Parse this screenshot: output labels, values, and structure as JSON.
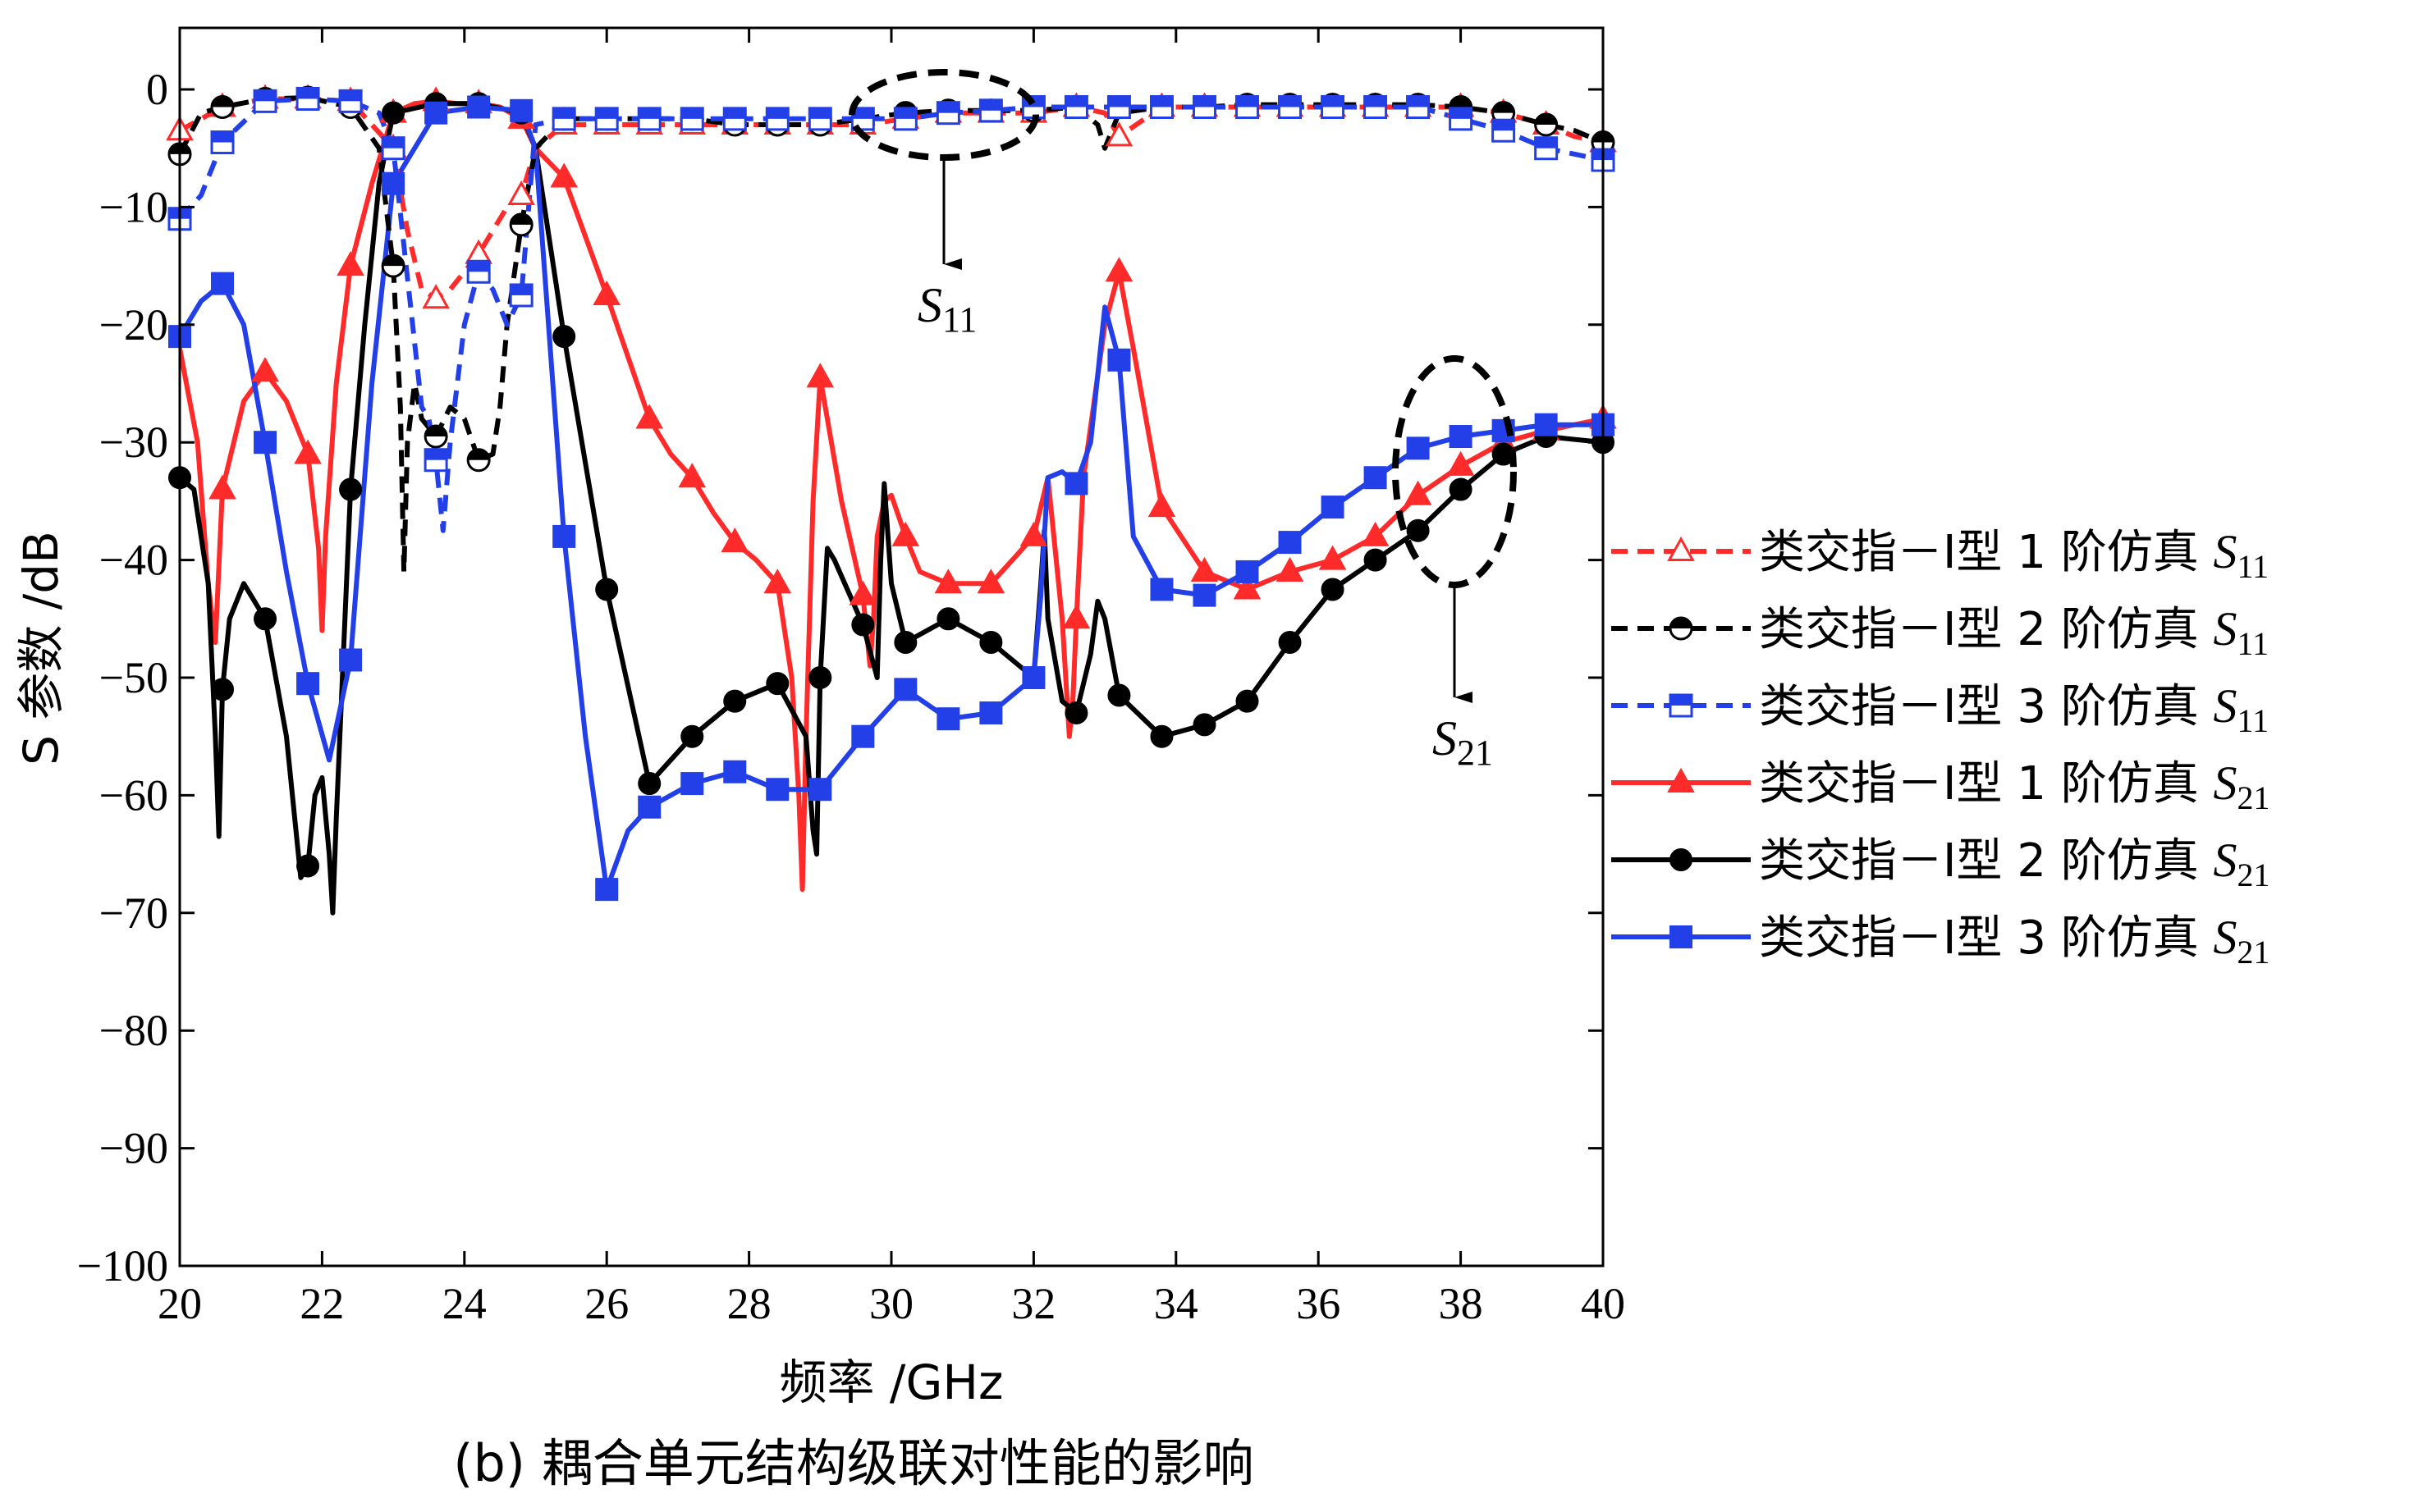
{
  "chart_data": {
    "type": "line",
    "caption": "(b) 耦合单元结构级联对性能的影响",
    "xlabel": "频率 /GHz",
    "ylabel": "S 参数 /dB",
    "xlim": [
      20,
      40
    ],
    "ylim": [
      -100,
      5
    ],
    "x_ticks": [
      20,
      22,
      24,
      26,
      28,
      30,
      32,
      34,
      36,
      38,
      40
    ],
    "x_tick_labels": [
      "20",
      "22",
      "24",
      "26",
      "28",
      "30",
      "32",
      "34",
      "36",
      "38",
      "40"
    ],
    "y_ticks": [
      0,
      -10,
      -20,
      -30,
      -40,
      -50,
      -60,
      -70,
      -80,
      -90,
      -100
    ],
    "y_tick_labels": [
      "0",
      "−10",
      "−20",
      "−30",
      "−40",
      "−50",
      "−60",
      "−70",
      "−80",
      "−90",
      "−100"
    ],
    "grid": false,
    "legend_position": "right",
    "annotations": [
      {
        "text_main": "S",
        "text_sub": "11",
        "points_to": [
          30.9,
          -1.5
        ]
      },
      {
        "text_main": "S",
        "text_sub": "21",
        "points_to": [
          38.0,
          -30.0
        ]
      }
    ],
    "series": [
      {
        "legend_prefix": "类交指－Ⅰ型 1 阶仿真 ",
        "legend_main": "S",
        "legend_sub": "11",
        "color": "#ff2a2a",
        "dash": true,
        "marker": "triangle-open",
        "x": [
          20.0,
          20.6,
          21.2,
          21.8,
          22.4,
          23.0,
          23.2,
          23.4,
          23.6,
          23.8,
          24.2,
          24.6,
          24.8,
          25.0,
          25.4,
          26.0,
          26.6,
          27.2,
          27.8,
          28.4,
          29.0,
          29.6,
          30.2,
          30.8,
          31.4,
          32.0,
          32.6,
          33.0,
          33.2,
          33.8,
          34.4,
          35.0,
          35.6,
          36.2,
          36.8,
          37.4,
          38.0,
          38.6,
          39.2,
          39.6,
          40.0
        ],
        "y": [
          -3.5,
          -1.5,
          -0.8,
          -0.8,
          -1.0,
          -5.0,
          -12.0,
          -17.0,
          -17.8,
          -17.0,
          -14.0,
          -10.0,
          -9.0,
          -5.0,
          -3.0,
          -3.0,
          -3.0,
          -3.0,
          -3.0,
          -3.0,
          -3.0,
          -3.0,
          -2.5,
          -2.0,
          -2.0,
          -2.0,
          -1.5,
          -2.0,
          -4.0,
          -1.5,
          -1.5,
          -1.5,
          -1.5,
          -1.5,
          -1.5,
          -1.5,
          -1.5,
          -2.0,
          -3.0,
          -4.0,
          -4.5
        ],
        "marker_x": [
          20.0,
          20.6,
          21.2,
          21.8,
          22.4,
          23.0,
          23.6,
          24.2,
          24.8,
          25.4,
          26.0,
          26.6,
          27.2,
          27.8,
          28.4,
          29.0,
          29.6,
          30.2,
          30.8,
          31.4,
          32.0,
          32.6,
          33.2,
          33.8,
          34.4,
          35.0,
          35.6,
          36.2,
          36.8,
          37.4,
          38.0,
          38.6,
          39.2,
          40.0
        ]
      },
      {
        "legend_prefix": "类交指－Ⅰ型 2 阶仿真 ",
        "legend_main": "S",
        "legend_sub": "11",
        "color": "#000000",
        "dash": true,
        "marker": "circle-half",
        "x": [
          20.0,
          20.3,
          20.6,
          21.2,
          21.8,
          22.4,
          22.8,
          23.0,
          23.1,
          23.15,
          23.2,
          23.3,
          23.4,
          23.6,
          23.8,
          24.0,
          24.2,
          24.4,
          24.5,
          24.6,
          24.8,
          25.0,
          25.4,
          26.0,
          26.6,
          27.2,
          27.8,
          28.4,
          29.0,
          29.6,
          30.2,
          30.8,
          31.4,
          32.0,
          32.6,
          32.9,
          33.0,
          33.2,
          33.8,
          34.4,
          35.0,
          35.6,
          36.2,
          36.8,
          37.4,
          38.0,
          38.6,
          39.2,
          39.6,
          40.0
        ],
        "y": [
          -5.5,
          -2.0,
          -1.5,
          -0.8,
          -0.7,
          -1.5,
          -5.0,
          -15.0,
          -27.0,
          -41.0,
          -30.0,
          -25.0,
          -28.0,
          -29.5,
          -27.0,
          -28.0,
          -31.5,
          -31.0,
          -27.0,
          -20.0,
          -11.5,
          -5.0,
          -2.5,
          -2.5,
          -2.5,
          -2.5,
          -3.0,
          -3.0,
          -3.0,
          -2.5,
          -2.0,
          -1.8,
          -1.8,
          -1.8,
          -1.5,
          -3.0,
          -5.0,
          -2.0,
          -1.5,
          -1.5,
          -1.3,
          -1.3,
          -1.3,
          -1.3,
          -1.3,
          -1.5,
          -2.0,
          -3.0,
          -3.5,
          -4.5
        ],
        "marker_x": [
          20.0,
          20.6,
          21.2,
          21.8,
          22.4,
          23.0,
          23.6,
          24.2,
          24.8,
          25.4,
          26.0,
          26.6,
          27.2,
          27.8,
          28.4,
          29.0,
          29.6,
          30.2,
          30.8,
          31.4,
          32.0,
          32.6,
          33.8,
          34.4,
          35.0,
          35.6,
          36.2,
          36.8,
          37.4,
          38.0,
          38.6,
          39.2,
          40.0
        ]
      },
      {
        "legend_prefix": "类交指－Ⅰ型 3 阶仿真 ",
        "legend_main": "S",
        "legend_sub": "11",
        "color": "#2340e8",
        "dash": true,
        "marker": "square-half",
        "x": [
          20.0,
          20.3,
          20.6,
          21.2,
          21.8,
          22.4,
          22.8,
          23.0,
          23.2,
          23.4,
          23.5,
          23.6,
          23.7,
          23.8,
          24.0,
          24.2,
          24.4,
          24.6,
          24.8,
          25.0,
          25.4,
          26.0,
          26.6,
          27.2,
          27.8,
          28.4,
          29.0,
          29.6,
          30.2,
          30.8,
          31.4,
          32.0,
          32.6,
          33.2,
          33.8,
          34.4,
          35.0,
          35.6,
          36.2,
          36.8,
          37.4,
          38.0,
          38.6,
          39.2,
          40.0
        ],
        "y": [
          -11.0,
          -9.0,
          -4.5,
          -1.0,
          -0.8,
          -1.0,
          -2.0,
          -5.0,
          -16.0,
          -27.0,
          -28.0,
          -31.5,
          -37.5,
          -30.0,
          -20.0,
          -15.5,
          -17.0,
          -20.0,
          -17.5,
          -3.0,
          -2.5,
          -2.5,
          -2.5,
          -2.5,
          -2.5,
          -2.5,
          -2.5,
          -2.5,
          -2.5,
          -2.0,
          -1.8,
          -1.5,
          -1.5,
          -1.5,
          -1.5,
          -1.5,
          -1.5,
          -1.5,
          -1.5,
          -1.5,
          -1.5,
          -2.5,
          -3.5,
          -5.0,
          -6.0
        ],
        "marker_x": [
          20.0,
          20.6,
          21.2,
          21.8,
          22.4,
          23.0,
          23.6,
          24.2,
          24.8,
          25.4,
          26.0,
          26.6,
          27.2,
          27.8,
          28.4,
          29.0,
          29.6,
          30.2,
          30.8,
          31.4,
          32.0,
          32.6,
          33.2,
          33.8,
          34.4,
          35.0,
          35.6,
          36.2,
          36.8,
          37.4,
          38.0,
          38.6,
          39.2,
          40.0
        ]
      },
      {
        "legend_prefix": "类交指－Ⅰ型 1 阶仿真 ",
        "legend_main": "S",
        "legend_sub": "21",
        "color": "#ff2a2a",
        "dash": false,
        "marker": "triangle-filled",
        "x": [
          20.0,
          20.25,
          20.4,
          20.5,
          20.6,
          20.9,
          21.2,
          21.5,
          21.8,
          21.95,
          22.0,
          22.05,
          22.2,
          22.4,
          22.7,
          23.0,
          23.3,
          23.6,
          23.9,
          24.2,
          24.5,
          24.8,
          25.0,
          25.4,
          26.0,
          26.6,
          26.9,
          27.2,
          27.5,
          27.8,
          28.1,
          28.4,
          28.6,
          28.7,
          28.75,
          28.8,
          28.9,
          29.0,
          29.1,
          29.3,
          29.6,
          29.7,
          29.75,
          29.8,
          29.9,
          30.0,
          30.2,
          30.4,
          30.8,
          31.4,
          32.0,
          32.2,
          32.4,
          32.5,
          32.55,
          32.6,
          32.7,
          33.0,
          33.2,
          33.4,
          33.8,
          34.4,
          35.0,
          35.6,
          36.2,
          36.8,
          37.4,
          38.0,
          38.6,
          39.2,
          40.0
        ],
        "y": [
          -22.0,
          -30.0,
          -42.0,
          -47.0,
          -34.0,
          -26.5,
          -24.0,
          -26.5,
          -31.0,
          -39.0,
          -46.0,
          -38.0,
          -25.0,
          -15.0,
          -8.0,
          -2.0,
          -1.2,
          -1.0,
          -1.2,
          -1.2,
          -1.5,
          -2.5,
          -5.0,
          -7.5,
          -17.5,
          -28.0,
          -31.0,
          -33.0,
          -36.0,
          -38.5,
          -40.0,
          -42.0,
          -50.0,
          -60.0,
          -68.0,
          -55.0,
          -35.0,
          -24.5,
          -28.0,
          -35.0,
          -43.0,
          -49.0,
          -45.0,
          -38.0,
          -35.0,
          -34.5,
          -38.0,
          -41.0,
          -42.0,
          -42.0,
          -38.0,
          -33.0,
          -45.0,
          -55.0,
          -52.0,
          -45.0,
          -33.0,
          -20.0,
          -15.5,
          -22.0,
          -35.5,
          -41.0,
          -42.5,
          -41.0,
          -40.0,
          -38.0,
          -34.5,
          -32.0,
          -30.0,
          -29.0,
          -28.0
        ],
        "marker_x": [
          20.6,
          21.2,
          21.8,
          22.4,
          23.0,
          23.6,
          24.2,
          24.8,
          25.4,
          26.0,
          26.6,
          27.2,
          27.8,
          28.4,
          29.0,
          29.6,
          30.2,
          30.8,
          31.4,
          32.0,
          32.6,
          33.2,
          33.8,
          34.4,
          35.0,
          35.6,
          36.2,
          36.8,
          37.4,
          38.0,
          38.6,
          39.2,
          40.0
        ]
      },
      {
        "legend_prefix": "类交指－Ⅰ型 2 阶仿真 ",
        "legend_main": "S",
        "legend_sub": "21",
        "color": "#000000",
        "dash": false,
        "marker": "circle-filled",
        "x": [
          20.0,
          20.2,
          20.4,
          20.5,
          20.55,
          20.6,
          20.7,
          20.9,
          21.2,
          21.5,
          21.7,
          21.8,
          21.9,
          22.0,
          22.1,
          22.15,
          22.2,
          22.4,
          22.6,
          22.8,
          23.0,
          23.6,
          24.2,
          24.8,
          25.0,
          25.4,
          26.0,
          26.6,
          27.2,
          27.8,
          28.4,
          28.8,
          28.9,
          28.95,
          29.0,
          29.1,
          29.2,
          29.6,
          29.8,
          29.85,
          29.9,
          30.0,
          30.2,
          30.8,
          31.4,
          32.0,
          32.1,
          32.15,
          32.2,
          32.4,
          32.6,
          32.8,
          32.9,
          33.0,
          33.2,
          33.8,
          34.4,
          35.0,
          35.6,
          36.2,
          36.8,
          37.4,
          38.0,
          38.6,
          39.2,
          40.0
        ],
        "y": [
          -33.0,
          -34.0,
          -42.0,
          -55.0,
          -63.5,
          -51.0,
          -45.0,
          -42.0,
          -45.0,
          -55.0,
          -67.0,
          -66.0,
          -60.0,
          -58.5,
          -65.0,
          -70.0,
          -62.0,
          -34.0,
          -20.0,
          -8.0,
          -2.0,
          -1.2,
          -1.2,
          -2.0,
          -5.0,
          -21.0,
          -42.5,
          -59.0,
          -55.0,
          -52.0,
          -50.5,
          -55.0,
          -63.0,
          -65.0,
          -50.0,
          -39.0,
          -40.0,
          -45.5,
          -50.0,
          -40.0,
          -33.5,
          -42.0,
          -47.0,
          -45.0,
          -47.0,
          -50.0,
          -42.0,
          -37.5,
          -45.0,
          -52.0,
          -53.0,
          -48.0,
          -43.5,
          -45.0,
          -51.5,
          -55.0,
          -54.0,
          -52.0,
          -47.0,
          -42.5,
          -40.0,
          -37.5,
          -34.0,
          -31.0,
          -29.5,
          -30.0
        ],
        "marker_x": [
          20.0,
          20.6,
          21.2,
          21.8,
          22.4,
          23.0,
          23.6,
          24.2,
          24.8,
          25.4,
          26.0,
          26.6,
          27.2,
          27.8,
          28.4,
          29.0,
          29.6,
          30.2,
          30.8,
          31.4,
          32.0,
          32.6,
          33.2,
          33.8,
          34.4,
          35.0,
          35.6,
          36.2,
          36.8,
          37.4,
          38.0,
          38.6,
          39.2,
          40.0
        ]
      },
      {
        "legend_prefix": "类交指－Ⅰ型 3 阶仿真 ",
        "legend_main": "S",
        "legend_sub": "21",
        "color": "#2340e8",
        "dash": false,
        "marker": "square-filled",
        "x": [
          20.0,
          20.3,
          20.6,
          20.9,
          21.2,
          21.5,
          21.8,
          22.1,
          22.4,
          22.7,
          23.0,
          23.6,
          24.2,
          24.8,
          25.0,
          25.4,
          25.7,
          26.0,
          26.3,
          26.6,
          27.2,
          27.8,
          28.4,
          29.0,
          29.6,
          30.2,
          30.8,
          31.4,
          32.0,
          32.1,
          32.2,
          32.4,
          32.6,
          32.8,
          33.0,
          33.2,
          33.4,
          33.8,
          34.4,
          35.0,
          35.6,
          36.2,
          36.8,
          37.4,
          38.0,
          38.6,
          39.2,
          40.0
        ],
        "y": [
          -21.0,
          -18.0,
          -16.5,
          -20.0,
          -30.0,
          -41.0,
          -50.5,
          -57.0,
          -48.5,
          -25.0,
          -8.0,
          -2.0,
          -1.5,
          -1.8,
          -5.0,
          -38.0,
          -55.0,
          -68.0,
          -63.0,
          -61.0,
          -59.0,
          -58.0,
          -59.5,
          -59.5,
          -55.0,
          -51.0,
          -53.5,
          -53.0,
          -50.0,
          -43.0,
          -33.0,
          -32.5,
          -33.5,
          -30.0,
          -18.5,
          -23.0,
          -38.0,
          -42.5,
          -43.0,
          -41.0,
          -38.5,
          -35.5,
          -33.0,
          -30.5,
          -29.5,
          -29.0,
          -28.5,
          -28.5
        ],
        "marker_x": [
          20.0,
          20.6,
          21.2,
          21.8,
          22.4,
          23.0,
          23.6,
          24.2,
          24.8,
          25.4,
          26.0,
          26.6,
          27.2,
          27.8,
          28.4,
          29.0,
          29.6,
          30.2,
          30.8,
          31.4,
          32.0,
          32.6,
          33.2,
          33.8,
          34.4,
          35.0,
          35.6,
          36.2,
          36.8,
          37.4,
          38.0,
          38.6,
          39.2,
          40.0
        ]
      }
    ]
  }
}
